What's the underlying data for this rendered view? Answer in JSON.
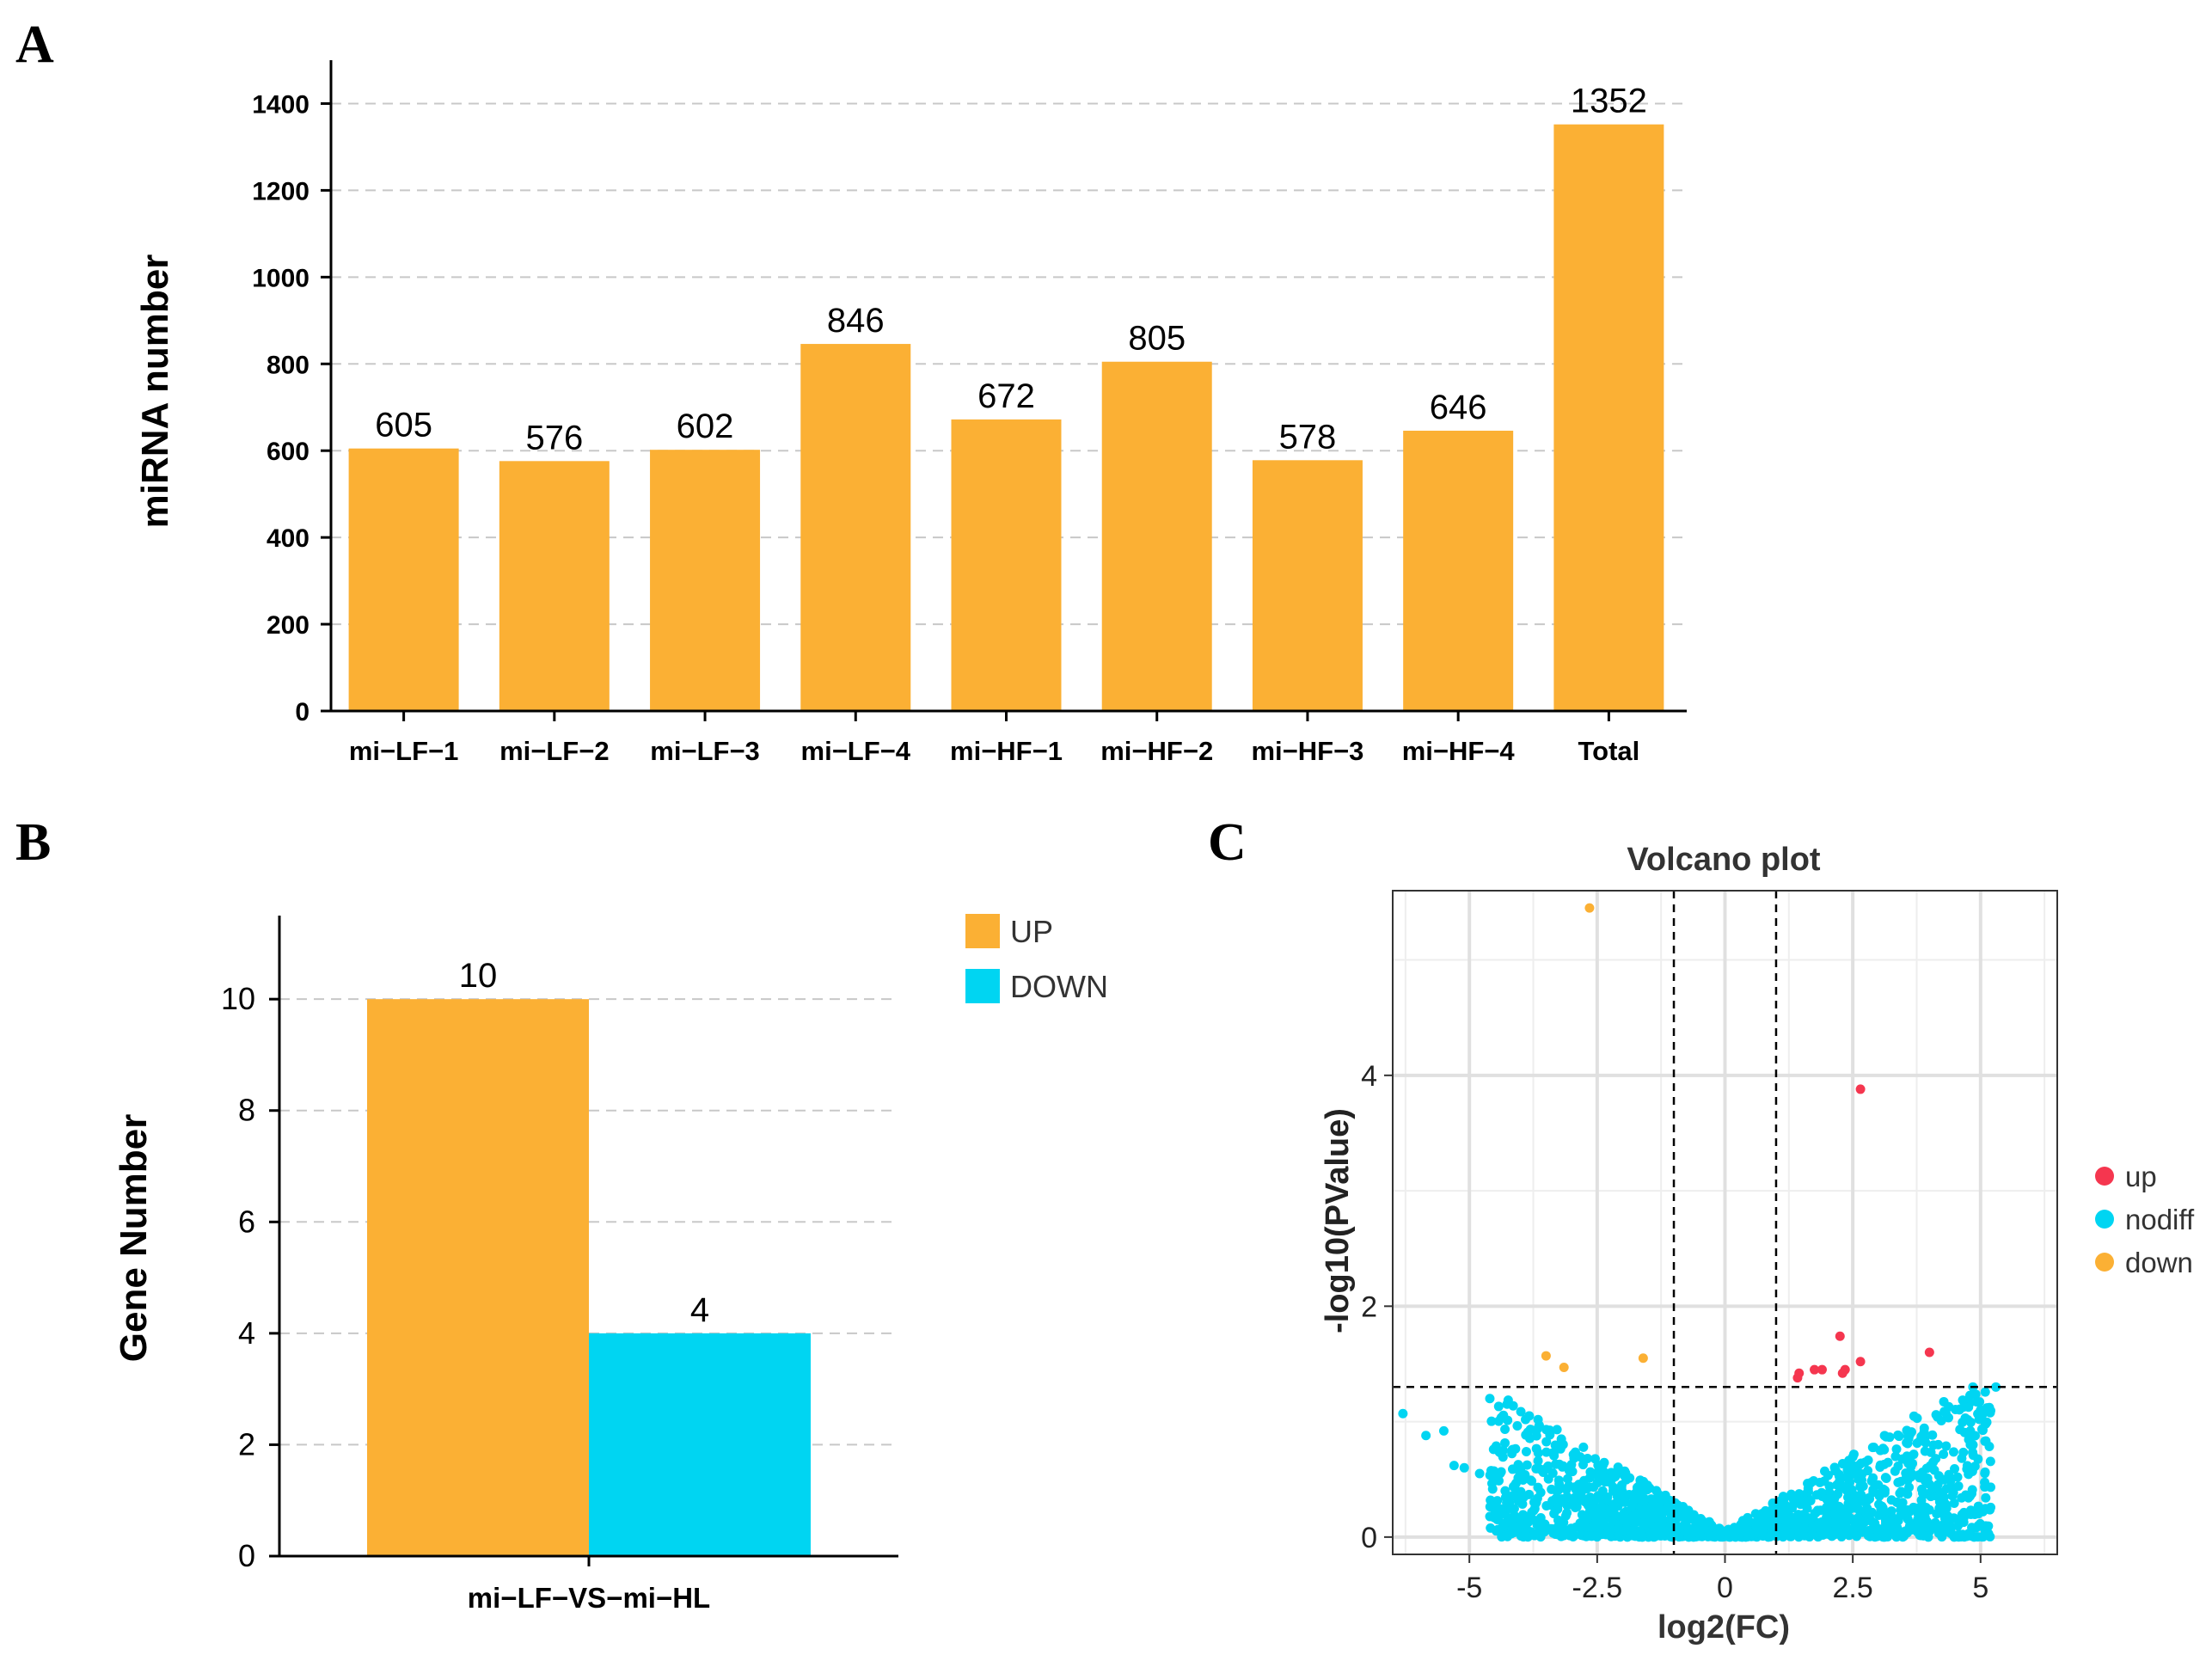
{
  "panel_labels": {
    "a": "A",
    "b": "B",
    "c": "C"
  },
  "colors": {
    "orange": "#FBB034",
    "cyan": "#00D5F2",
    "red": "#F5364F",
    "grid": "#C8C8C8"
  },
  "chart_data": [
    {
      "id": "A",
      "type": "bar",
      "title": "",
      "xlabel": "",
      "ylabel": "miRNA number",
      "ylim": [
        0,
        1500
      ],
      "yticks": [
        0,
        200,
        400,
        600,
        800,
        1000,
        1200,
        1400
      ],
      "categories": [
        "mi−LF−1",
        "mi−LF−2",
        "mi−LF−3",
        "mi−LF−4",
        "mi−HF−1",
        "mi−HF−2",
        "mi−HF−3",
        "mi−HF−4",
        "Total"
      ],
      "values": [
        605,
        576,
        602,
        846,
        672,
        805,
        578,
        646,
        1352
      ],
      "grid": "horizontal dashed"
    },
    {
      "id": "B",
      "type": "bar",
      "title": "",
      "xlabel": "",
      "ylabel": "Gene Number",
      "ylim": [
        0,
        11.5
      ],
      "yticks": [
        0,
        2,
        4,
        6,
        8,
        10
      ],
      "categories": [
        "mi−LF−VS−mi−HL"
      ],
      "series": [
        {
          "name": "UP",
          "values": [
            10
          ]
        },
        {
          "name": "DOWN",
          "values": [
            4
          ]
        }
      ],
      "legend": "top-right"
    },
    {
      "id": "C",
      "type": "scatter",
      "title": "Volcano plot",
      "xlabel": "log2(FC)",
      "ylabel": "-log10(PValue)",
      "xlim": [
        -6.5,
        6.5
      ],
      "ylim": [
        -0.15,
        5.6
      ],
      "xticks": [
        -5,
        -2.5,
        0,
        2.5,
        5
      ],
      "xtick_labels": [
        "-5",
        "-2.5",
        "0",
        "2.5",
        "5"
      ],
      "yticks": [
        0,
        2,
        4
      ],
      "thresholds": {
        "fc": [
          -1,
          1
        ],
        "p": 1.301
      },
      "legend": "right",
      "series": [
        {
          "name": "up",
          "points": [
            [
              2.65,
              3.88
            ],
            [
              2.25,
              1.74
            ],
            [
              4.0,
              1.6
            ],
            [
              2.65,
              1.52
            ],
            [
              2.35,
              1.45
            ],
            [
              2.3,
              1.42
            ],
            [
              1.75,
              1.45
            ],
            [
              1.9,
              1.45
            ],
            [
              1.45,
              1.42
            ],
            [
              1.42,
              1.38
            ]
          ]
        },
        {
          "name": "nodiff",
          "points": []
        },
        {
          "name": "down",
          "points": [
            [
              -2.65,
              5.45
            ],
            [
              -3.5,
              1.57
            ],
            [
              -3.15,
              1.47
            ],
            [
              -1.6,
              1.55
            ]
          ]
        }
      ]
    }
  ]
}
